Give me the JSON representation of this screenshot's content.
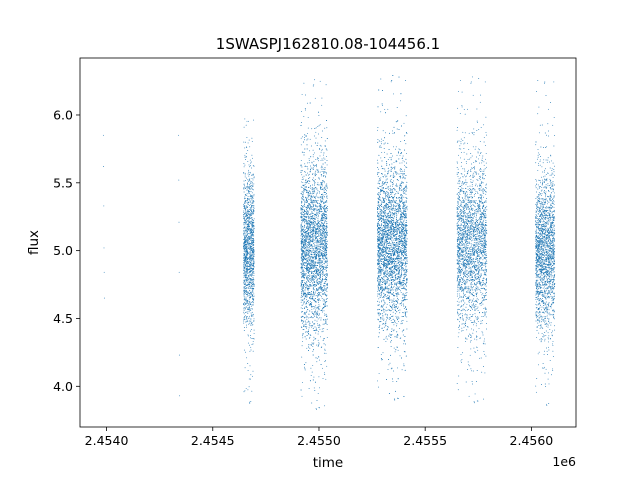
{
  "chart_data": {
    "type": "scatter",
    "title": "1SWASPJ162810.08-104456.1",
    "xlabel": "time",
    "ylabel": "flux",
    "x_offset_label": "1e6",
    "xlim": [
      2453875,
      2456210
    ],
    "ylim": [
      3.7,
      6.42
    ],
    "x_ticks": [
      2454000,
      2454500,
      2455000,
      2455500,
      2456000
    ],
    "x_tick_labels": [
      "2.4540",
      "2.4545",
      "2.4550",
      "2.4555",
      "2.4560"
    ],
    "y_ticks": [
      4.0,
      4.5,
      5.0,
      5.5,
      6.0
    ],
    "y_tick_labels": [
      "4.0",
      "4.5",
      "5.0",
      "5.5",
      "6.0"
    ],
    "grid": false,
    "legend": "none",
    "marker_color": "#1f77b4",
    "series": [
      {
        "x": [
          2453985,
          2453986,
          2453987,
          2453988,
          2453989,
          2453990,
          2454339,
          2454340,
          2454341,
          2454342,
          2454343,
          2454344
        ],
        "y": [
          5.85,
          5.62,
          5.33,
          5.02,
          4.84,
          4.65,
          5.85,
          5.52,
          5.21,
          4.84,
          4.23,
          3.93
        ]
      }
    ],
    "dense_segments": [
      {
        "x_range": [
          2454645,
          2454695
        ],
        "y_center": 5.0,
        "y_spread": 0.28,
        "y_min": 3.85,
        "y_max": 6.02,
        "points": 1400
      },
      {
        "x_range": [
          2454915,
          2455040
        ],
        "y_center": 5.03,
        "y_spread": 0.32,
        "y_min": 3.8,
        "y_max": 6.29,
        "points": 3200
      },
      {
        "x_range": [
          2455275,
          2455415
        ],
        "y_center": 5.05,
        "y_spread": 0.3,
        "y_min": 3.87,
        "y_max": 6.32,
        "points": 3800
      },
      {
        "x_range": [
          2455650,
          2455790
        ],
        "y_center": 5.05,
        "y_spread": 0.3,
        "y_min": 3.85,
        "y_max": 6.31,
        "points": 2400
      },
      {
        "x_range": [
          2456020,
          2456110
        ],
        "y_center": 5.0,
        "y_spread": 0.28,
        "y_min": 3.83,
        "y_max": 6.31,
        "points": 2000
      }
    ]
  }
}
